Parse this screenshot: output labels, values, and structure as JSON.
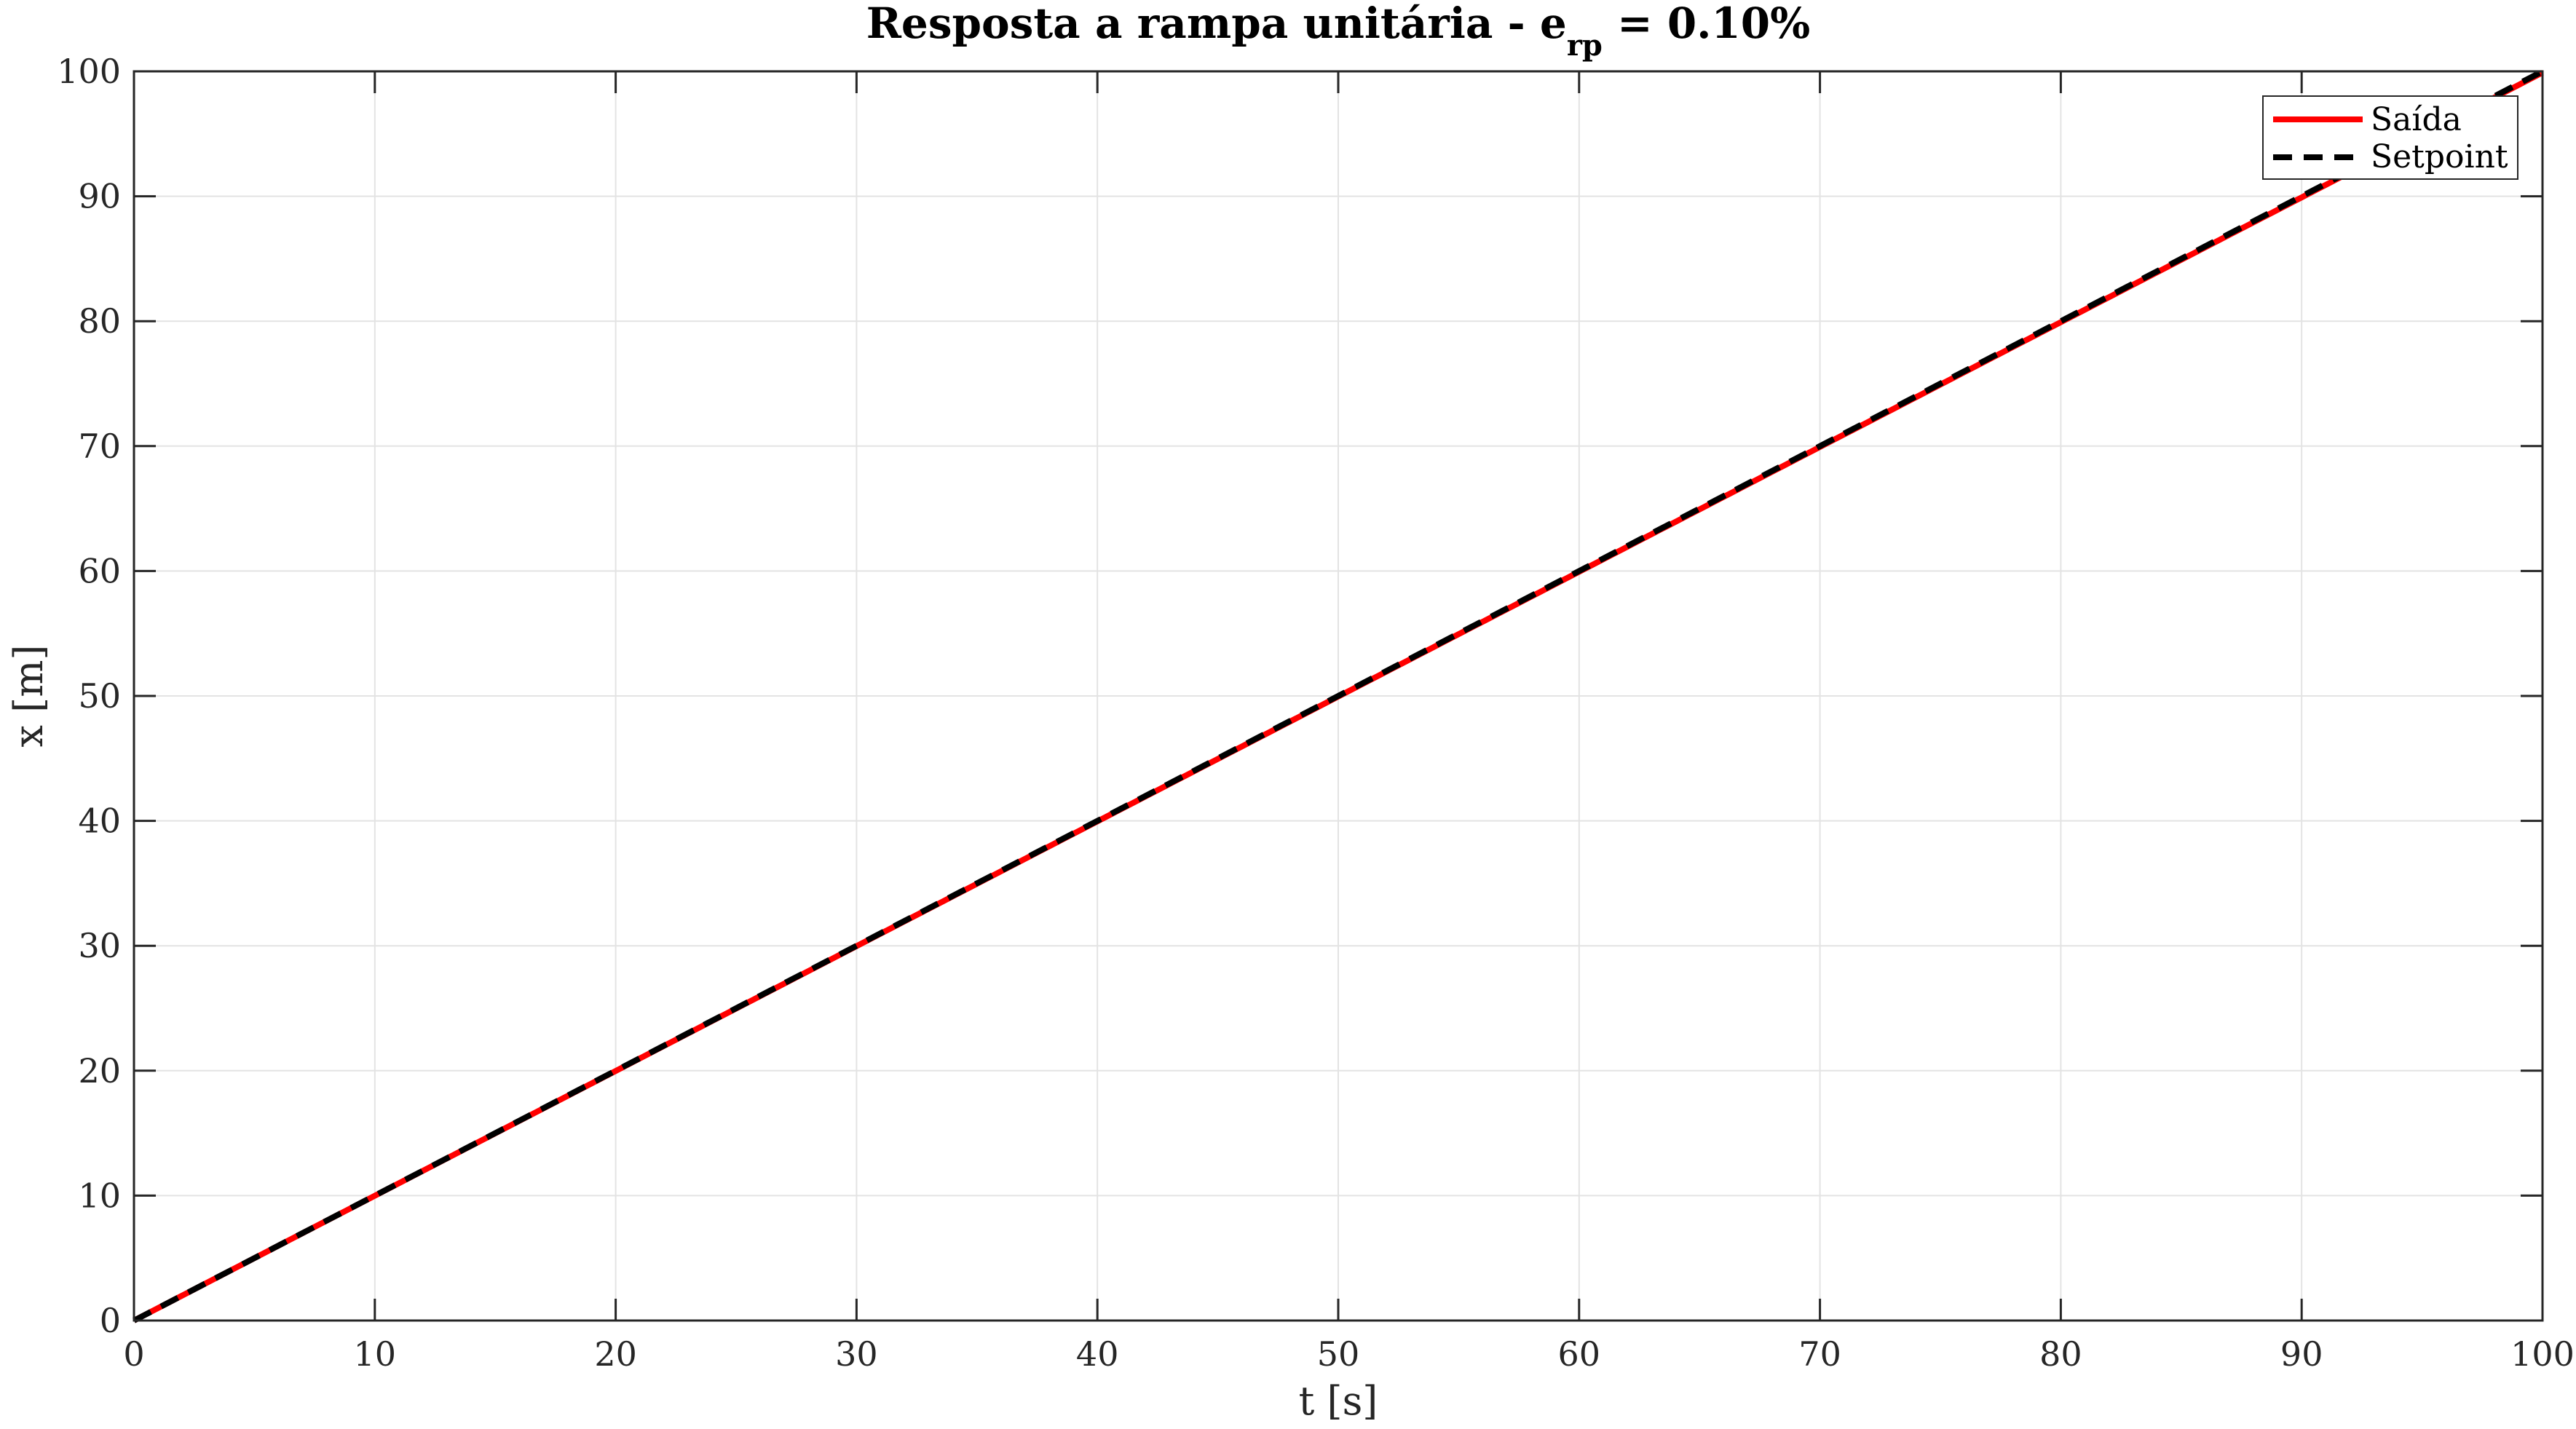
{
  "chart_data": {
    "type": "line",
    "title": {
      "main": "Resposta a rampa unitária - e",
      "subscript": "rp",
      "suffix": " = 0.10%"
    },
    "xlabel": "t [s]",
    "ylabel": "x [m]",
    "xlim": [
      0,
      100
    ],
    "ylim": [
      0,
      100
    ],
    "xticks": [
      0,
      10,
      20,
      30,
      40,
      50,
      60,
      70,
      80,
      90,
      100
    ],
    "yticks": [
      0,
      10,
      20,
      30,
      40,
      50,
      60,
      70,
      80,
      90,
      100
    ],
    "xtick_labels": [
      "0",
      "10",
      "20",
      "30",
      "40",
      "50",
      "60",
      "70",
      "80",
      "90",
      "100"
    ],
    "ytick_labels": [
      "0",
      "10",
      "20",
      "30",
      "40",
      "50",
      "60",
      "70",
      "80",
      "90",
      "100"
    ],
    "grid": true,
    "legend_position": "top-right",
    "series": [
      {
        "name": "Saída",
        "style": "solid",
        "color": "#ff0000",
        "x": [
          0,
          10,
          20,
          30,
          40,
          50,
          60,
          70,
          80,
          90,
          100
        ],
        "y": [
          0,
          9.99,
          19.98,
          29.97,
          39.96,
          49.95,
          59.94,
          69.93,
          79.92,
          89.91,
          99.9
        ]
      },
      {
        "name": "Setpoint",
        "style": "dashed",
        "color": "#000000",
        "x": [
          0,
          100
        ],
        "y": [
          0,
          100
        ]
      }
    ]
  }
}
